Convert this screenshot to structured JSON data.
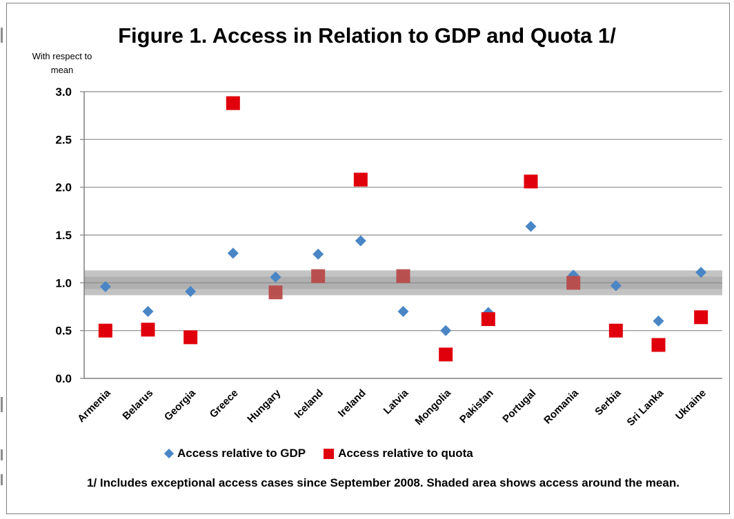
{
  "chart_data": {
    "type": "scatter",
    "title": "Figure 1. Access in Relation to GDP and Quota 1/",
    "ylabel": "With respect to mean",
    "xlabel": "",
    "ylim": [
      0,
      3
    ],
    "yticks": [
      "0.0",
      "0.5",
      "1.0",
      "1.5",
      "2.0",
      "2.5",
      "3.0"
    ],
    "categories": [
      "Armenia",
      "Belarus",
      "Georgia",
      "Greece",
      "Hungary",
      "Iceland",
      "Ireland",
      "Latvia",
      "Mongolia",
      "Pakistan",
      "Portugal",
      "Romania",
      "Serbia",
      "Sri Lanka",
      "Ukraine"
    ],
    "series": [
      {
        "name": "Access relative to GDP",
        "marker": "diamond",
        "color": "#4a86c5",
        "values": [
          0.96,
          0.7,
          0.91,
          1.31,
          1.06,
          1.3,
          1.44,
          0.7,
          0.5,
          0.69,
          1.59,
          1.08,
          0.97,
          0.6,
          1.11
        ]
      },
      {
        "name": "Access relative to quota",
        "marker": "square",
        "color": "#e0000c",
        "values": [
          0.5,
          0.51,
          0.43,
          2.88,
          0.9,
          1.07,
          2.08,
          1.07,
          0.25,
          0.62,
          2.06,
          1.0,
          0.5,
          0.35,
          0.64
        ]
      }
    ],
    "shaded_band": [
      0.87,
      1.13
    ],
    "grid": true,
    "legend_position": "bottom"
  },
  "footnote": "1/ Includes exceptional access cases since September 2008. Shaded area shows access around the mean."
}
